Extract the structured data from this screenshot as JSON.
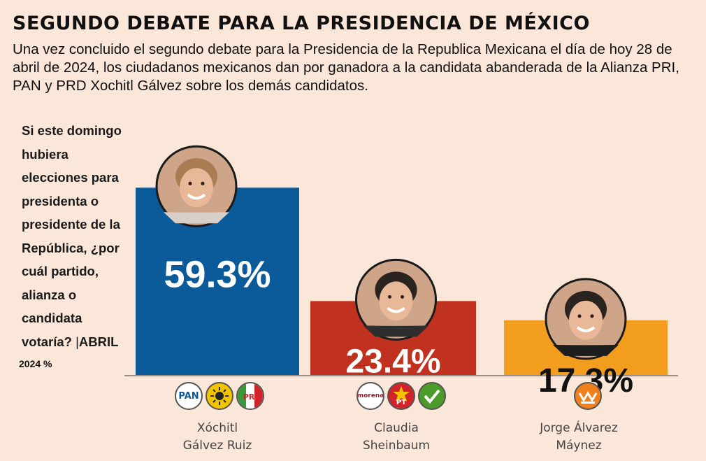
{
  "header": {
    "title": "SEGUNDO DEBATE PARA LA PRESIDENCIA DE MÉXICO",
    "subtitle": "Una vez concluido el segundo debate para la Presidencia de la Republica Mexicana el día de hoy 28 de abril de 2024, los ciudadanos mexicanos dan por ganadora a la candidata abanderada de la Alianza PRI, PAN y PRD Xochitl Gálvez sobre los demás candidatos."
  },
  "question": {
    "text": "Si este domingo hubiera elecciones para presidenta o presidente de la República, ¿por cuál partido, alianza o candidata votaría?",
    "separator": "|",
    "month": "ABRIL",
    "source": "2024 %"
  },
  "colors": {
    "bar_1": "#0b5a99",
    "bar_2": "#c0311f",
    "bar_3": "#f39d1f",
    "background": "#fbe7d9"
  },
  "chart_data": {
    "type": "bar",
    "categories": [
      "Xóchitl Gálvez Ruiz",
      "Claudia Sheinbaum",
      "Jorge Álvarez Máynez"
    ],
    "values": [
      59.3,
      23.4,
      17.3
    ],
    "value_labels": [
      "59.3%",
      "23.4%",
      "17.3%"
    ],
    "title": "",
    "xlabel": "",
    "ylabel": "",
    "ylim": [
      0,
      70
    ],
    "grid": false,
    "legend": "none"
  },
  "candidates": [
    {
      "name_line1": "Xóchitl",
      "name_line2": "Gálvez Ruiz",
      "photo_icon": "candidate-portrait-icon",
      "parties": [
        {
          "label": "PAN",
          "icon": "pan-logo-icon",
          "color": "#0b5a99"
        },
        {
          "label": "PRD",
          "icon": "prd-logo-icon",
          "color": "#f2c500"
        },
        {
          "label": "PRI",
          "icon": "pri-logo-icon",
          "color": "#d2232a"
        }
      ]
    },
    {
      "name_line1": "Claudia",
      "name_line2": "Sheinbaum",
      "photo_icon": "candidate-portrait-icon",
      "parties": [
        {
          "label": "morena",
          "icon": "morena-logo-icon",
          "color": "#a3192e"
        },
        {
          "label": "PT",
          "icon": "pt-logo-icon",
          "color": "#d2232a"
        },
        {
          "label": "PVEM",
          "icon": "pvem-logo-icon",
          "color": "#4c9a2a"
        }
      ]
    },
    {
      "name_line1": "Jorge Álvarez",
      "name_line2": "Máynez",
      "photo_icon": "candidate-portrait-icon",
      "parties": [
        {
          "label": "MOVIMIENTO CIUDADANO",
          "icon": "mc-logo-icon",
          "color": "#f07f1c"
        }
      ]
    }
  ]
}
